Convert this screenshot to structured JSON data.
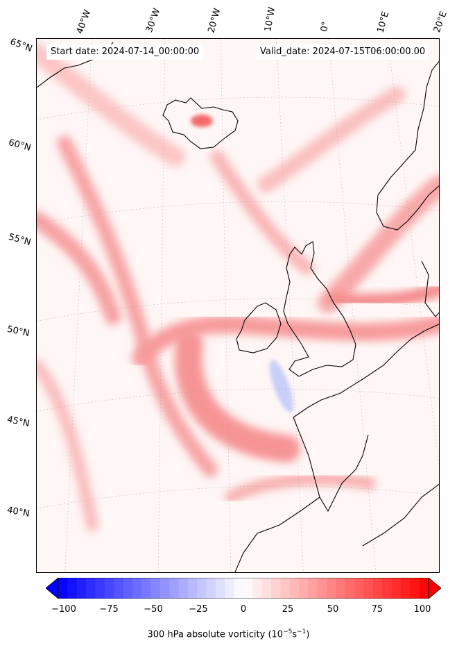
{
  "header": {
    "start_date": "Start date: 2024-07-14_00:00:00",
    "valid_date": "Valid_date: 2024-07-15T06:00:00.00"
  },
  "map": {
    "projection": "lambert-conformal",
    "field": "300 hPa absolute vorticity",
    "lon_labels": [
      "40°W",
      "30°W",
      "20°W",
      "10°W",
      "0°",
      "10°E",
      "20°E"
    ],
    "lat_labels": [
      "65°N",
      "60°N",
      "55°N",
      "50°N",
      "45°N",
      "40°N"
    ],
    "gridlines": true,
    "coastlines": true
  },
  "colorbar": {
    "ticks": [
      "−100",
      "−75",
      "−50",
      "−25",
      "0",
      "25",
      "50",
      "75",
      "100"
    ],
    "label_text": "300 hPa absolute vorticity (10",
    "label_exp1": "−5",
    "label_mid": "s",
    "label_exp2": "−1",
    "label_end": ")",
    "range": [
      -100,
      100
    ],
    "colormap": "bwr",
    "extend": "both",
    "colors": {
      "min": "#0000ff",
      "mid": "#ffffff",
      "max": "#ff0000"
    }
  }
}
